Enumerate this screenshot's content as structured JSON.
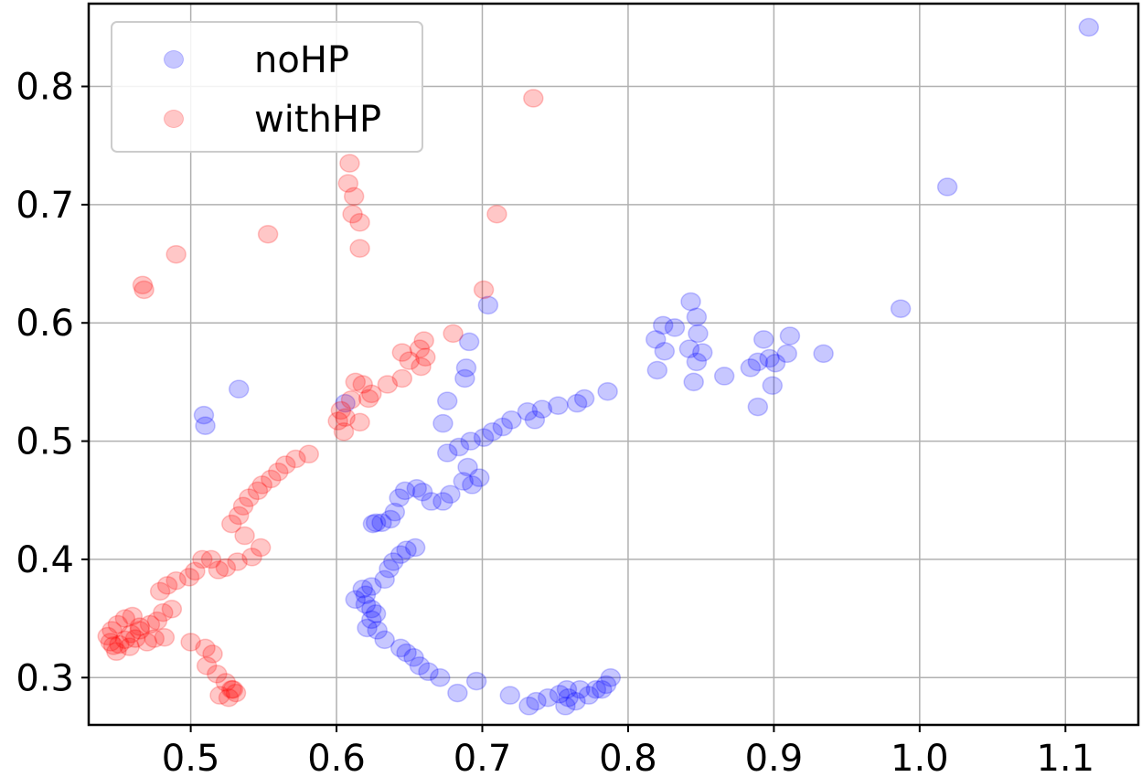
{
  "chart_data": {
    "type": "scatter",
    "title": "",
    "xlabel": "",
    "ylabel": "",
    "xlim": [
      0.43,
      1.15
    ],
    "ylim": [
      0.26,
      0.87
    ],
    "xticks": [
      0.5,
      0.6,
      0.7,
      0.8,
      0.9,
      1.0,
      1.1
    ],
    "yticks": [
      0.3,
      0.4,
      0.5,
      0.6,
      0.7,
      0.8
    ],
    "xtick_labels": [
      "0.5",
      "0.6",
      "0.7",
      "0.8",
      "0.9",
      "1.0",
      "1.1"
    ],
    "ytick_labels": [
      "0.3",
      "0.4",
      "0.5",
      "0.6",
      "0.7",
      "0.8"
    ],
    "grid": true,
    "legend_position": "top-left",
    "series": [
      {
        "name": "noHP",
        "color": "#0000ff",
        "alpha": 0.22,
        "points": [
          [
            1.116,
            0.85
          ],
          [
            1.019,
            0.715
          ],
          [
            0.987,
            0.612
          ],
          [
            0.934,
            0.574
          ],
          [
            0.911,
            0.589
          ],
          [
            0.909,
            0.574
          ],
          [
            0.899,
            0.547
          ],
          [
            0.901,
            0.566
          ],
          [
            0.893,
            0.586
          ],
          [
            0.897,
            0.57
          ],
          [
            0.889,
            0.567
          ],
          [
            0.884,
            0.562
          ],
          [
            0.889,
            0.529
          ],
          [
            0.866,
            0.555
          ],
          [
            0.851,
            0.575
          ],
          [
            0.848,
            0.591
          ],
          [
            0.847,
            0.605
          ],
          [
            0.843,
            0.618
          ],
          [
            0.847,
            0.567
          ],
          [
            0.845,
            0.55
          ],
          [
            0.842,
            0.578
          ],
          [
            0.832,
            0.596
          ],
          [
            0.825,
            0.576
          ],
          [
            0.824,
            0.598
          ],
          [
            0.819,
            0.586
          ],
          [
            0.82,
            0.56
          ],
          [
            0.786,
            0.542
          ],
          [
            0.77,
            0.536
          ],
          [
            0.765,
            0.532
          ],
          [
            0.752,
            0.53
          ],
          [
            0.741,
            0.527
          ],
          [
            0.731,
            0.525
          ],
          [
            0.736,
            0.518
          ],
          [
            0.72,
            0.518
          ],
          [
            0.714,
            0.512
          ],
          [
            0.707,
            0.508
          ],
          [
            0.701,
            0.503
          ],
          [
            0.692,
            0.5
          ],
          [
            0.684,
            0.495
          ],
          [
            0.676,
            0.49
          ],
          [
            0.673,
            0.515
          ],
          [
            0.676,
            0.534
          ],
          [
            0.688,
            0.553
          ],
          [
            0.689,
            0.562
          ],
          [
            0.691,
            0.584
          ],
          [
            0.704,
            0.615
          ],
          [
            0.606,
            0.532
          ],
          [
            0.533,
            0.544
          ],
          [
            0.509,
            0.522
          ],
          [
            0.51,
            0.513
          ],
          [
            0.698,
            0.469
          ],
          [
            0.693,
            0.463
          ],
          [
            0.687,
            0.466
          ],
          [
            0.69,
            0.478
          ],
          [
            0.678,
            0.455
          ],
          [
            0.673,
            0.449
          ],
          [
            0.665,
            0.449
          ],
          [
            0.659,
            0.457
          ],
          [
            0.655,
            0.46
          ],
          [
            0.647,
            0.458
          ],
          [
            0.643,
            0.452
          ],
          [
            0.64,
            0.44
          ],
          [
            0.637,
            0.434
          ],
          [
            0.631,
            0.431
          ],
          [
            0.627,
            0.431
          ],
          [
            0.625,
            0.43
          ],
          [
            0.654,
            0.41
          ],
          [
            0.648,
            0.408
          ],
          [
            0.644,
            0.404
          ],
          [
            0.639,
            0.398
          ],
          [
            0.636,
            0.392
          ],
          [
            0.633,
            0.383
          ],
          [
            0.624,
            0.377
          ],
          [
            0.618,
            0.375
          ],
          [
            0.62,
            0.37
          ],
          [
            0.613,
            0.366
          ],
          [
            0.62,
            0.362
          ],
          [
            0.624,
            0.358
          ],
          [
            0.627,
            0.354
          ],
          [
            0.624,
            0.349
          ],
          [
            0.621,
            0.342
          ],
          [
            0.628,
            0.34
          ],
          [
            0.633,
            0.332
          ],
          [
            0.644,
            0.325
          ],
          [
            0.648,
            0.321
          ],
          [
            0.653,
            0.317
          ],
          [
            0.657,
            0.31
          ],
          [
            0.663,
            0.305
          ],
          [
            0.671,
            0.3
          ],
          [
            0.683,
            0.287
          ],
          [
            0.696,
            0.297
          ],
          [
            0.719,
            0.285
          ],
          [
            0.732,
            0.276
          ],
          [
            0.737,
            0.28
          ],
          [
            0.745,
            0.283
          ],
          [
            0.753,
            0.286
          ],
          [
            0.758,
            0.29
          ],
          [
            0.759,
            0.283
          ],
          [
            0.764,
            0.28
          ],
          [
            0.773,
            0.285
          ],
          [
            0.778,
            0.29
          ],
          [
            0.785,
            0.294
          ],
          [
            0.788,
            0.3
          ],
          [
            0.782,
            0.29
          ],
          [
            0.767,
            0.29
          ],
          [
            0.757,
            0.276
          ]
        ]
      },
      {
        "name": "withHP",
        "color": "#ff0000",
        "alpha": 0.22,
        "points": [
          [
            0.735,
            0.79
          ],
          [
            0.609,
            0.735
          ],
          [
            0.608,
            0.718
          ],
          [
            0.612,
            0.707
          ],
          [
            0.611,
            0.692
          ],
          [
            0.616,
            0.685
          ],
          [
            0.616,
            0.663
          ],
          [
            0.71,
            0.692
          ],
          [
            0.553,
            0.675
          ],
          [
            0.49,
            0.658
          ],
          [
            0.467,
            0.632
          ],
          [
            0.468,
            0.628
          ],
          [
            0.701,
            0.628
          ],
          [
            0.68,
            0.591
          ],
          [
            0.66,
            0.585
          ],
          [
            0.657,
            0.578
          ],
          [
            0.661,
            0.571
          ],
          [
            0.658,
            0.563
          ],
          [
            0.65,
            0.568
          ],
          [
            0.645,
            0.575
          ],
          [
            0.645,
            0.553
          ],
          [
            0.635,
            0.548
          ],
          [
            0.624,
            0.54
          ],
          [
            0.622,
            0.536
          ],
          [
            0.618,
            0.548
          ],
          [
            0.613,
            0.55
          ],
          [
            0.61,
            0.535
          ],
          [
            0.603,
            0.526
          ],
          [
            0.606,
            0.52
          ],
          [
            0.601,
            0.517
          ],
          [
            0.605,
            0.508
          ],
          [
            0.616,
            0.516
          ],
          [
            0.581,
            0.489
          ],
          [
            0.572,
            0.485
          ],
          [
            0.565,
            0.48
          ],
          [
            0.56,
            0.474
          ],
          [
            0.555,
            0.468
          ],
          [
            0.549,
            0.463
          ],
          [
            0.546,
            0.458
          ],
          [
            0.54,
            0.452
          ],
          [
            0.536,
            0.445
          ],
          [
            0.533,
            0.437
          ],
          [
            0.528,
            0.43
          ],
          [
            0.537,
            0.42
          ],
          [
            0.548,
            0.41
          ],
          [
            0.542,
            0.402
          ],
          [
            0.532,
            0.398
          ],
          [
            0.524,
            0.393
          ],
          [
            0.519,
            0.391
          ],
          [
            0.514,
            0.4
          ],
          [
            0.508,
            0.4
          ],
          [
            0.503,
            0.39
          ],
          [
            0.499,
            0.385
          ],
          [
            0.49,
            0.382
          ],
          [
            0.484,
            0.378
          ],
          [
            0.479,
            0.373
          ],
          [
            0.487,
            0.358
          ],
          [
            0.481,
            0.355
          ],
          [
            0.477,
            0.348
          ],
          [
            0.472,
            0.345
          ],
          [
            0.465,
            0.34
          ],
          [
            0.459,
            0.337
          ],
          [
            0.455,
            0.332
          ],
          [
            0.451,
            0.328
          ],
          [
            0.447,
            0.327
          ],
          [
            0.445,
            0.33
          ],
          [
            0.443,
            0.335
          ],
          [
            0.446,
            0.34
          ],
          [
            0.45,
            0.345
          ],
          [
            0.455,
            0.35
          ],
          [
            0.46,
            0.352
          ],
          [
            0.465,
            0.343
          ],
          [
            0.462,
            0.333
          ],
          [
            0.458,
            0.326
          ],
          [
            0.449,
            0.322
          ],
          [
            0.47,
            0.33
          ],
          [
            0.475,
            0.333
          ],
          [
            0.482,
            0.334
          ],
          [
            0.5,
            0.33
          ],
          [
            0.51,
            0.325
          ],
          [
            0.515,
            0.32
          ],
          [
            0.511,
            0.31
          ],
          [
            0.518,
            0.303
          ],
          [
            0.524,
            0.296
          ],
          [
            0.528,
            0.29
          ],
          [
            0.52,
            0.285
          ],
          [
            0.526,
            0.283
          ],
          [
            0.531,
            0.287
          ],
          [
            0.529,
            0.29
          ]
        ]
      }
    ]
  }
}
